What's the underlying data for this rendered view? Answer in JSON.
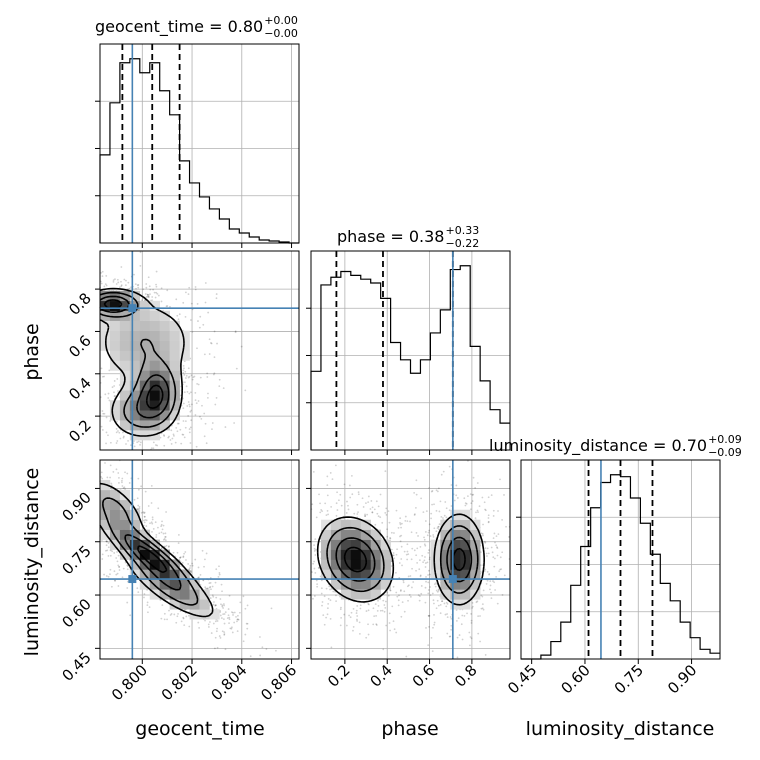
{
  "chart_data": {
    "type": "corner",
    "parameters": [
      "geocent_time",
      "phase",
      "luminosity_distance"
    ],
    "truth_color": "#4682b4",
    "grid": true,
    "truths": {
      "geocent_time": 0.7996,
      "phase": 0.71,
      "luminosity_distance": 0.645
    },
    "axes": {
      "geocent_time": {
        "range": [
          0.7983,
          0.8063
        ],
        "ticks": [
          0.8,
          0.802,
          0.804,
          0.806
        ],
        "tick_labels": [
          "0.800",
          "0.802",
          "0.804",
          "0.806"
        ]
      },
      "phase": {
        "range": [
          0.04,
          0.98
        ],
        "ticks": [
          0.2,
          0.4,
          0.6,
          0.8
        ],
        "tick_labels": [
          "0.2",
          "0.4",
          "0.6",
          "0.8"
        ]
      },
      "luminosity_distance": {
        "range": [
          0.42,
          0.98
        ],
        "ticks": [
          0.45,
          0.6,
          0.75,
          0.9
        ],
        "tick_labels": [
          "0.45",
          "0.60",
          "0.75",
          "0.90"
        ]
      }
    },
    "titles": [
      {
        "param": "geocent_time",
        "value": "0.80",
        "plus": "+0.00",
        "minus": "−0.00"
      },
      {
        "param": "phase",
        "value": "0.38",
        "plus": "+0.33",
        "minus": "−0.22"
      },
      {
        "param": "luminosity_distance",
        "value": "0.70",
        "plus": "+0.09",
        "minus": "−0.09"
      }
    ],
    "quantiles": {
      "geocent_time": [
        0.7992,
        0.8004,
        0.8015
      ],
      "phase": [
        0.16,
        0.38,
        0.71
      ],
      "luminosity_distance": [
        0.61,
        0.7,
        0.79
      ]
    },
    "histograms": {
      "geocent_time": {
        "edges": [
          0.7983,
          0.7987,
          0.7991,
          0.7995,
          0.7999,
          0.8003,
          0.8007,
          0.8011,
          0.8015,
          0.8019,
          0.8023,
          0.8027,
          0.8031,
          0.8035,
          0.8039,
          0.8043,
          0.8047,
          0.8051,
          0.8055,
          0.8059,
          0.8063
        ],
        "counts": [
          0.44,
          0.7,
          0.9,
          0.92,
          0.85,
          0.9,
          0.76,
          0.64,
          0.41,
          0.3,
          0.23,
          0.17,
          0.12,
          0.07,
          0.05,
          0.03,
          0.015,
          0.01,
          0.005,
          0
        ]
      },
      "phase": {
        "edges": [
          0.04,
          0.087,
          0.134,
          0.181,
          0.228,
          0.275,
          0.322,
          0.369,
          0.416,
          0.463,
          0.51,
          0.557,
          0.604,
          0.651,
          0.698,
          0.745,
          0.792,
          0.839,
          0.886,
          0.933,
          0.98
        ],
        "counts": [
          0.41,
          0.86,
          0.9,
          0.93,
          0.91,
          0.89,
          0.87,
          0.79,
          0.56,
          0.47,
          0.4,
          0.47,
          0.61,
          0.73,
          0.94,
          0.96,
          0.54,
          0.36,
          0.21,
          0.14
        ]
      },
      "luminosity_distance": {
        "edges": [
          0.42,
          0.448,
          0.476,
          0.504,
          0.532,
          0.56,
          0.588,
          0.616,
          0.644,
          0.672,
          0.7,
          0.728,
          0.756,
          0.784,
          0.812,
          0.84,
          0.868,
          0.896,
          0.924,
          0.952,
          0.98
        ],
        "counts": [
          0.0,
          0.0,
          0.02,
          0.09,
          0.19,
          0.38,
          0.58,
          0.78,
          0.91,
          0.95,
          0.94,
          0.83,
          0.7,
          0.54,
          0.39,
          0.3,
          0.19,
          0.11,
          0.05,
          0.03
        ]
      }
    },
    "densities": [
      {
        "x": "geocent_time",
        "y": "phase",
        "modes": [
          {
            "x": 0.7988,
            "y": 0.73,
            "sx": 0.0006,
            "sy": 0.035,
            "w": 1.0
          },
          {
            "x": 0.8006,
            "y": 0.31,
            "sx": 0.0005,
            "sy": 0.08,
            "w": 0.85
          },
          {
            "x": 0.7999,
            "y": 0.22,
            "sx": 0.0007,
            "sy": 0.07,
            "w": 0.5
          },
          {
            "x": 0.8001,
            "y": 0.55,
            "sx": 0.0012,
            "sy": 0.12,
            "w": 0.35
          }
        ]
      },
      {
        "x": "geocent_time",
        "y": "luminosity_distance",
        "modes": [
          {
            "x": 0.8003,
            "y": 0.71,
            "sx": 0.0009,
            "sy": 0.05,
            "w": 1.0,
            "rho": -0.85
          },
          {
            "x": 0.8012,
            "y": 0.62,
            "sx": 0.001,
            "sy": 0.05,
            "w": 0.55,
            "rho": -0.8
          },
          {
            "x": 0.7989,
            "y": 0.84,
            "sx": 0.0007,
            "sy": 0.05,
            "w": 0.45,
            "rho": -0.6
          }
        ]
      },
      {
        "x": "phase",
        "y": "luminosity_distance",
        "modes": [
          {
            "x": 0.25,
            "y": 0.7,
            "sx": 0.09,
            "sy": 0.06,
            "w": 1.0,
            "rho": -0.2
          },
          {
            "x": 0.74,
            "y": 0.7,
            "sx": 0.06,
            "sy": 0.065,
            "w": 0.95,
            "rho": 0.0
          }
        ]
      }
    ]
  }
}
